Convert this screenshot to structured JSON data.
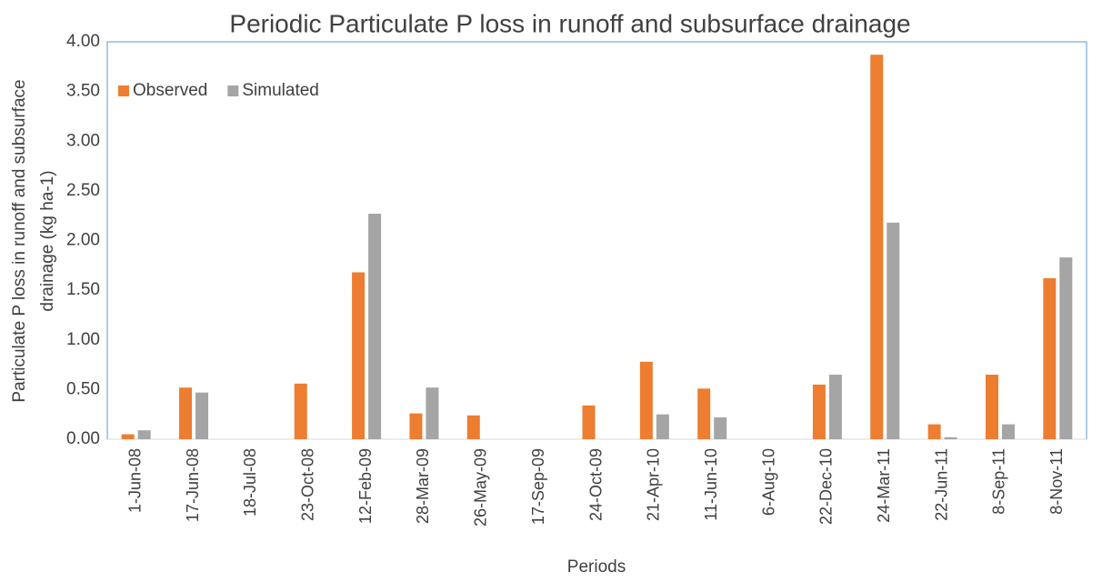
{
  "chart_data": {
    "type": "bar",
    "title": "Periodic Particulate P loss in runoff and  subsurface drainage",
    "x_label": "Periods",
    "y_label": [
      "Particulate P loss in runoff and subsurface",
      "drainage  (kg ha-1)"
    ],
    "categories": [
      "1-Jun-08",
      "17-Jun-08",
      "18-Jul-08",
      "23-Oct-08",
      "12-Feb-09",
      "28-Mar-09",
      "26-May-09",
      "17-Sep-09",
      "24-Oct-09",
      "21-Apr-10",
      "11-Jun-10",
      "6-Aug-10",
      "22-Dec-10",
      "24-Mar-11",
      "22-Jun-11",
      "8-Sep-11",
      "8-Nov-11"
    ],
    "series": [
      {
        "name": "Observed",
        "color": "#ed7d31",
        "values": [
          0.05,
          0.52,
          0,
          0.56,
          1.68,
          0.26,
          0.24,
          0,
          0.34,
          0.78,
          0.51,
          0,
          0.55,
          3.87,
          0.15,
          0.65,
          1.62
        ]
      },
      {
        "name": "Simulated",
        "color": "#a5a5a5",
        "values": [
          0.09,
          0.47,
          0,
          0,
          2.27,
          0.52,
          0,
          0,
          0,
          0.25,
          0.22,
          0,
          0.65,
          2.18,
          0.02,
          0.15,
          1.83
        ]
      }
    ],
    "ylim": [
      0,
      4
    ],
    "yticks": [
      {
        "value": 0,
        "label": "0.00"
      },
      {
        "value": 0.5,
        "label": "0.50"
      },
      {
        "value": 1,
        "label": "1.00"
      },
      {
        "value": 1.5,
        "label": "1.50"
      },
      {
        "value": 2,
        "label": "2.00"
      },
      {
        "value": 2.5,
        "label": "2.50"
      },
      {
        "value": 3,
        "label": "3.00"
      },
      {
        "value": 3.5,
        "label": "3.50"
      },
      {
        "value": 4,
        "label": "4.00"
      }
    ],
    "legend": "top-left"
  }
}
